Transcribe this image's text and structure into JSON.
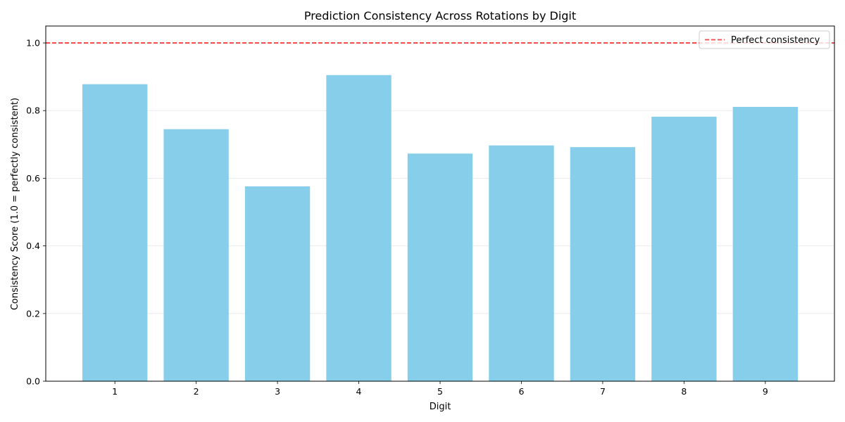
{
  "chart_data": {
    "type": "bar",
    "title": "Prediction Consistency Across Rotations by Digit",
    "xlabel": "Digit",
    "ylabel": "Consistency Score (1.0 = perfectly consistent)",
    "categories": [
      "1",
      "2",
      "3",
      "4",
      "5",
      "6",
      "7",
      "8",
      "9"
    ],
    "values": [
      0.878,
      0.745,
      0.576,
      0.905,
      0.673,
      0.697,
      0.692,
      0.782,
      0.811
    ],
    "ylim": [
      0,
      1.05
    ],
    "yticks": [
      0.0,
      0.2,
      0.4,
      0.6,
      0.8,
      1.0
    ],
    "ytick_labels": [
      "0.0",
      "0.2",
      "0.4",
      "0.6",
      "0.8",
      "1.0"
    ],
    "bar_color": "#87CEEB",
    "grid": {
      "y": true,
      "x": false
    },
    "reference_line": {
      "y": 1.0,
      "label": "Perfect consistency",
      "color": "#ff0000",
      "style": "dashed"
    },
    "legend": {
      "placement": "top-right",
      "entries": [
        "Perfect consistency"
      ]
    }
  }
}
